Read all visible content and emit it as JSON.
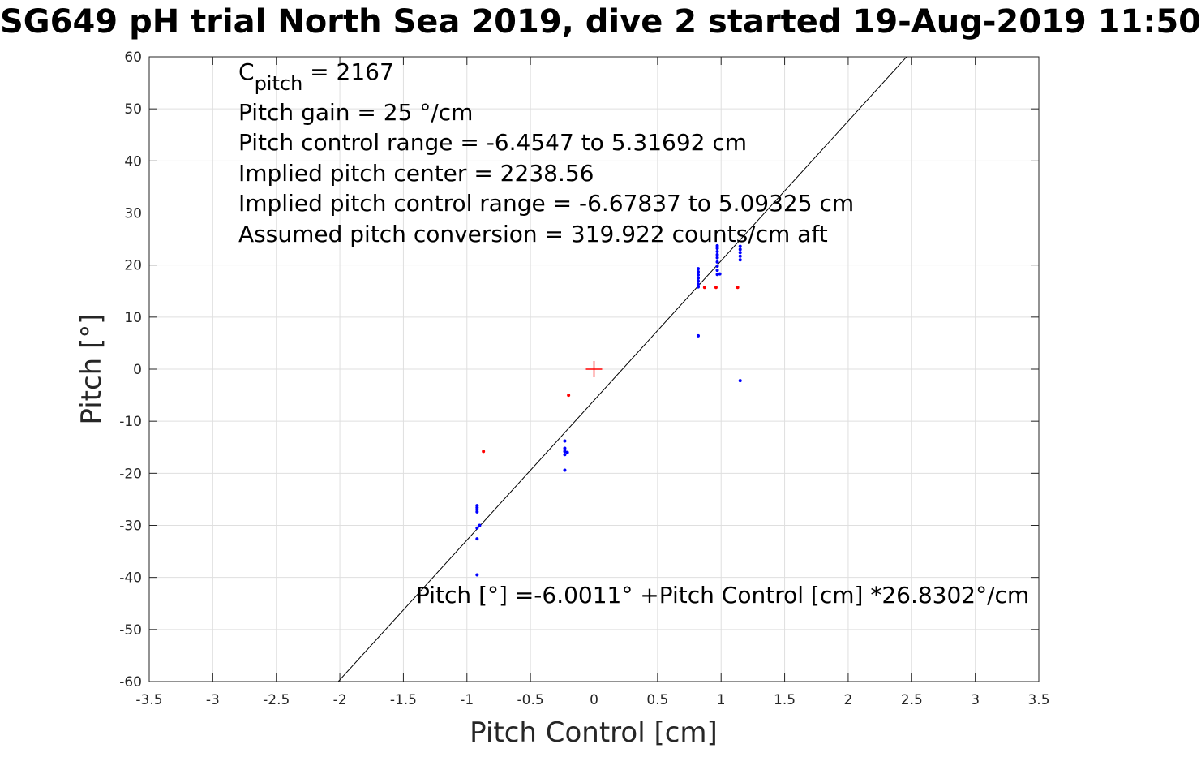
{
  "chart_data": {
    "type": "scatter",
    "title": "SG649 pH trial North Sea 2019, dive 2 started 19-Aug-2019 11:50",
    "xlabel": "Pitch Control [cm]",
    "ylabel": "Pitch [°]",
    "xlim": [
      -3.5,
      3.5
    ],
    "ylim": [
      -60,
      60
    ],
    "grid": true,
    "xticks": [
      -3.5,
      -3,
      -2.5,
      -2,
      -1.5,
      -1,
      -0.5,
      0,
      0.5,
      1,
      1.5,
      2,
      2.5,
      3,
      3.5
    ],
    "xtick_labels": [
      "-3.5",
      "-3",
      "-2.5",
      "-2",
      "-1.5",
      "-1",
      "-0.5",
      "0",
      "0.5",
      "1",
      "1.5",
      "2",
      "2.5",
      "3",
      "3.5"
    ],
    "yticks": [
      -60,
      -50,
      -40,
      -30,
      -20,
      -10,
      0,
      10,
      20,
      30,
      40,
      50,
      60
    ],
    "ytick_labels": [
      "-60",
      "-50",
      "-40",
      "-30",
      "-20",
      "-10",
      "0",
      "10",
      "20",
      "30",
      "40",
      "50",
      "60"
    ],
    "series": [
      {
        "color": "#0000ff",
        "marker": "dot",
        "points": [
          [
            -0.92,
            -26.2
          ],
          [
            -0.92,
            -26.6
          ],
          [
            -0.92,
            -27.0
          ],
          [
            -0.92,
            -27.4
          ],
          [
            -0.92,
            -30.5
          ],
          [
            -0.92,
            -32.6
          ],
          [
            -0.92,
            -39.5
          ],
          [
            -0.9,
            -30.0
          ],
          [
            -0.23,
            -13.8
          ],
          [
            -0.23,
            -15.2
          ],
          [
            -0.23,
            -15.8
          ],
          [
            -0.23,
            -16.4
          ],
          [
            -0.23,
            -19.4
          ],
          [
            -0.21,
            -16.0
          ],
          [
            0.82,
            15.8
          ],
          [
            0.82,
            16.3
          ],
          [
            0.82,
            16.9
          ],
          [
            0.82,
            17.5
          ],
          [
            0.82,
            18.1
          ],
          [
            0.82,
            18.7
          ],
          [
            0.82,
            19.3
          ],
          [
            0.82,
            6.4
          ],
          [
            0.97,
            18.2
          ],
          [
            0.97,
            19.0
          ],
          [
            0.97,
            19.8
          ],
          [
            0.97,
            20.6
          ],
          [
            0.97,
            21.4
          ],
          [
            0.97,
            22.0
          ],
          [
            0.97,
            22.6
          ],
          [
            0.97,
            23.2
          ],
          [
            0.97,
            23.7
          ],
          [
            0.99,
            18.3
          ],
          [
            1.15,
            21.0
          ],
          [
            1.15,
            21.7
          ],
          [
            1.15,
            22.4
          ],
          [
            1.15,
            23.0
          ],
          [
            1.15,
            23.6
          ],
          [
            1.15,
            -2.2
          ]
        ]
      },
      {
        "color": "#ff0000",
        "marker": "dot",
        "points": [
          [
            -0.87,
            -15.8
          ],
          [
            -0.2,
            -5.0
          ],
          [
            0.87,
            15.7
          ],
          [
            0.96,
            15.7
          ],
          [
            1.13,
            15.7
          ]
        ]
      }
    ],
    "center_marker": {
      "x": 0,
      "y": 0,
      "color": "#ff0000",
      "marker": "plus"
    },
    "fit_line": {
      "intercept": -6.0011,
      "slope": 26.8302,
      "color": "#000000"
    },
    "annotations": {
      "c_pitch_prefix": "C",
      "c_pitch_sub": "pitch",
      "c_pitch_value": " = 2167",
      "lines": [
        "Pitch gain = 25 °/cm",
        "Pitch control range = -6.4547 to 5.31692 cm",
        "Implied pitch center = 2238.56",
        "Implied pitch control range = -6.67837 to 5.09325 cm",
        "Assumed pitch conversion = 319.922 counts/cm aft"
      ],
      "fit_label": "Pitch [°] =-6.0011° +Pitch Control [cm] *26.8302°/cm"
    }
  }
}
